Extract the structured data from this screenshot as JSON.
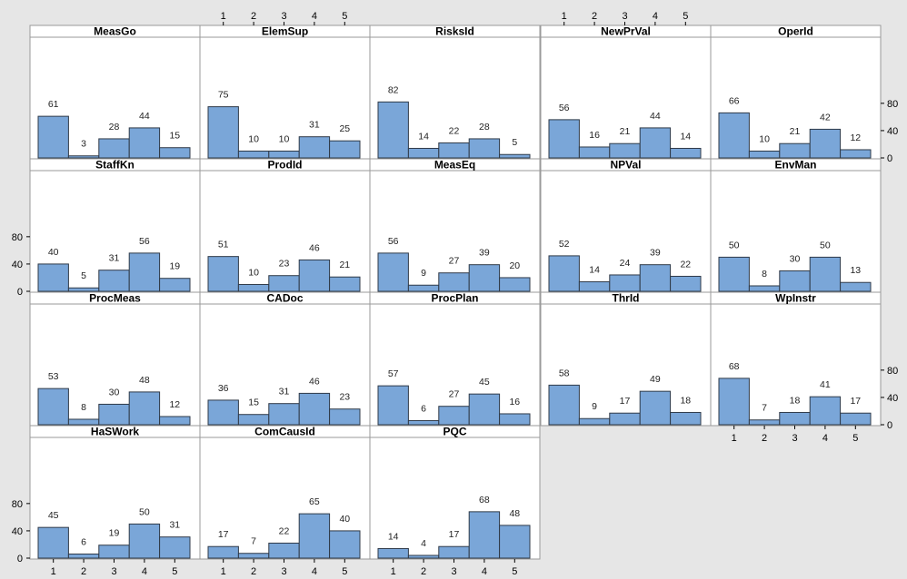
{
  "chart_data": {
    "type": "bar",
    "layout": "histogram panel grid, 4 rows x 5 columns, shared axes",
    "categories": [
      "1",
      "2",
      "3",
      "4",
      "5"
    ],
    "y_ticks": [
      "0",
      "40",
      "80"
    ],
    "ylim": [
      0,
      85
    ],
    "colors": {
      "bar": "#7aa6d8",
      "bar_edge": "#2f3a48",
      "panel_bg": "#ffffff",
      "strip_bg": "#ffffff",
      "figure_bg": "#e6e6e6"
    },
    "grid": false,
    "panels": [
      {
        "title": "MeasGo",
        "values": [
          61,
          3,
          28,
          44,
          15
        ]
      },
      {
        "title": "ElemSup",
        "values": [
          75,
          10,
          10,
          31,
          25
        ]
      },
      {
        "title": "RisksId",
        "values": [
          82,
          14,
          22,
          28,
          5
        ]
      },
      {
        "title": "NewPrVal",
        "values": [
          56,
          16,
          21,
          44,
          14
        ]
      },
      {
        "title": "OperId",
        "values": [
          66,
          10,
          21,
          42,
          12
        ]
      },
      {
        "title": "StaffKn",
        "values": [
          40,
          5,
          31,
          56,
          19
        ]
      },
      {
        "title": "ProdId",
        "values": [
          51,
          10,
          23,
          46,
          21
        ]
      },
      {
        "title": "MeasEq",
        "values": [
          56,
          9,
          27,
          39,
          20
        ]
      },
      {
        "title": "NPVal",
        "values": [
          52,
          14,
          24,
          39,
          22
        ]
      },
      {
        "title": "EnvMan",
        "values": [
          50,
          8,
          30,
          50,
          13
        ]
      },
      {
        "title": "ProcMeas",
        "values": [
          53,
          8,
          30,
          48,
          12
        ]
      },
      {
        "title": "CADoc",
        "values": [
          36,
          15,
          31,
          46,
          23
        ]
      },
      {
        "title": "ProcPlan",
        "values": [
          57,
          6,
          27,
          45,
          16
        ]
      },
      {
        "title": "ThrId",
        "values": [
          58,
          9,
          17,
          49,
          18
        ]
      },
      {
        "title": "WpInstr",
        "values": [
          68,
          7,
          18,
          41,
          17
        ]
      },
      {
        "title": "HaSWork",
        "values": [
          45,
          6,
          19,
          50,
          31
        ]
      },
      {
        "title": "ComCausId",
        "values": [
          17,
          7,
          22,
          65,
          40
        ]
      },
      {
        "title": "PQC",
        "values": [
          14,
          4,
          17,
          68,
          48
        ]
      }
    ]
  }
}
